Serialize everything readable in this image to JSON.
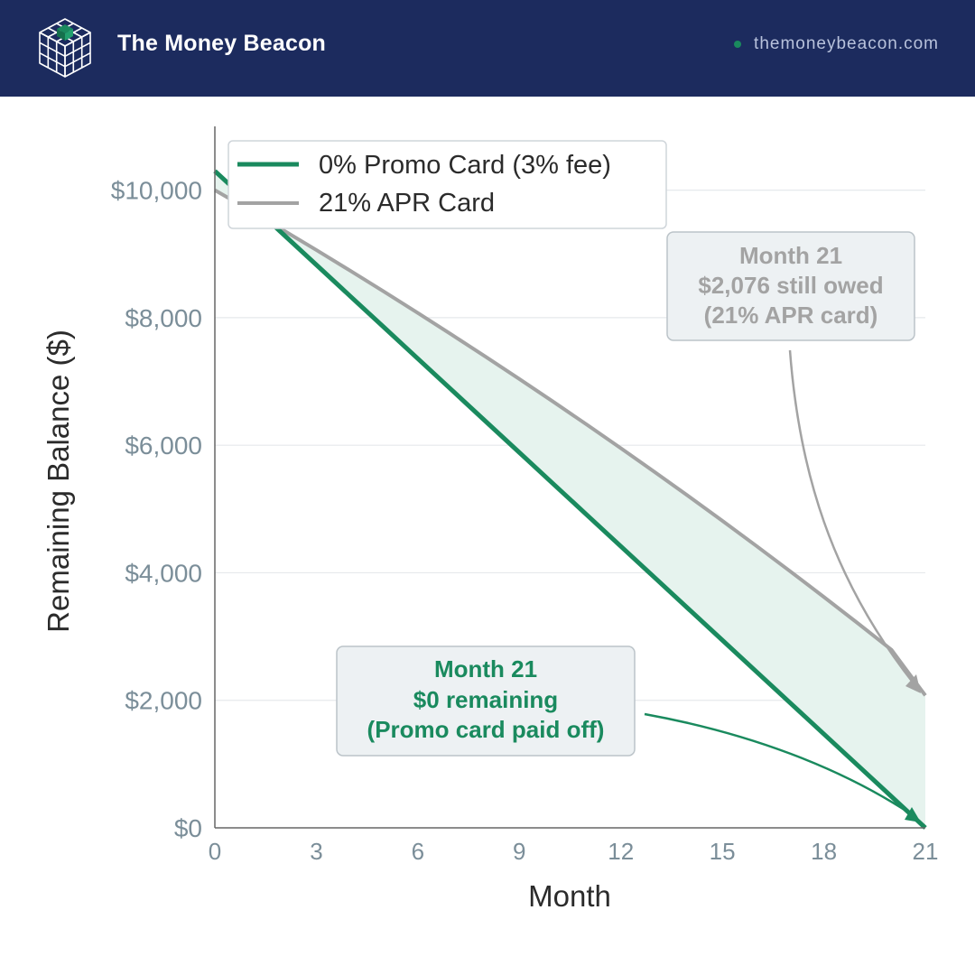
{
  "header": {
    "brand": "The Money Beacon",
    "site": "themoneybeacon.com",
    "logo_icon": "isometric-cube-grid-icon"
  },
  "colors": {
    "header_bg": "#1c2b5e",
    "promo": "#1a8a5e",
    "apr": "#a3a3a3",
    "fill": "#e6f3ee",
    "grid": "#e6e9ec",
    "tick": "#7b8e99",
    "annot_bg": "#edf1f3"
  },
  "chart_data": {
    "type": "line",
    "xlabel": "Month",
    "ylabel": "Remaining Balance ($)",
    "xlim": [
      0,
      21
    ],
    "ylim": [
      0,
      11000
    ],
    "xticks": [
      0,
      3,
      6,
      9,
      12,
      15,
      18,
      21
    ],
    "yticks": [
      0,
      2000,
      4000,
      6000,
      8000,
      10000
    ],
    "ytick_labels": [
      "$0",
      "$2,000",
      "$4,000",
      "$6,000",
      "$8,000",
      "$10,000"
    ],
    "grid": "horizontal",
    "legend_position": "top-left",
    "x": [
      0,
      1,
      2,
      3,
      4,
      5,
      6,
      7,
      8,
      9,
      10,
      11,
      12,
      13,
      14,
      15,
      16,
      17,
      18,
      19,
      20,
      21
    ],
    "series": [
      {
        "name": "0% Promo Card (3% fee)",
        "color": "#1a8a5e",
        "values": [
          10300,
          9810,
          9319,
          8829,
          8338,
          7848,
          7357,
          6867,
          6376,
          5886,
          5395,
          4905,
          4414,
          3924,
          3433,
          2943,
          2452,
          1962,
          1471,
          981,
          490,
          0
        ]
      },
      {
        "name": "21% APR Card",
        "color": "#a3a3a3",
        "values": [
          10000,
          9694,
          9379,
          9061,
          8737,
          8408,
          8074,
          7734,
          7389,
          7039,
          6683,
          6321,
          5953,
          5580,
          5201,
          4815,
          4423,
          4025,
          3621,
          3210,
          2792,
          2076
        ]
      }
    ],
    "annotations": [
      {
        "lines": [
          "Month 21",
          "$2,076 still owed",
          "(21% APR card)"
        ],
        "x": 21,
        "y": 2076,
        "color": "#a3a3a3"
      },
      {
        "lines": [
          "Month 21",
          "$0 remaining",
          "(Promo card paid off)"
        ],
        "x": 21,
        "y": 0,
        "color": "#1a8a5e"
      }
    ]
  }
}
